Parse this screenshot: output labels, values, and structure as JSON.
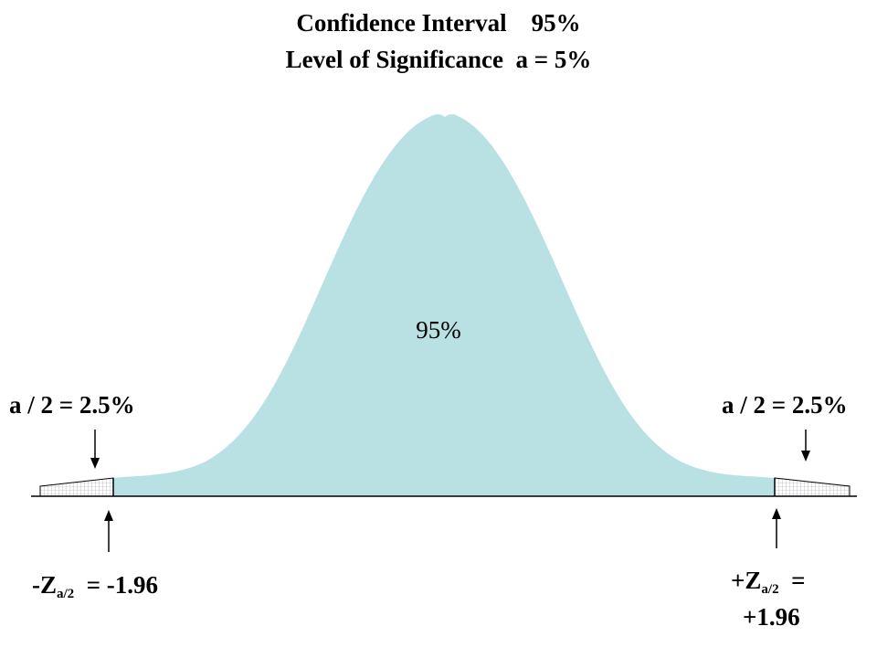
{
  "title_line1": "Confidence Interval    95%",
  "title_line2": "Level of Significance  a = 5%",
  "center_label": "95%",
  "left_tail_label": "a / 2 = 2.5%",
  "right_tail_label": "a / 2 = 2.5%",
  "left_z": {
    "prefix": "-Z",
    "sub": "a/2",
    "suffix": "  = -1.96"
  },
  "right_z": {
    "prefix": "+Z",
    "sub": "a/2",
    "suffix": "  =",
    "line2": "+1.96"
  },
  "colors": {
    "curve_fill": "#b9e0e2",
    "tail_fill": "#ffffff",
    "line": "#000000"
  }
}
